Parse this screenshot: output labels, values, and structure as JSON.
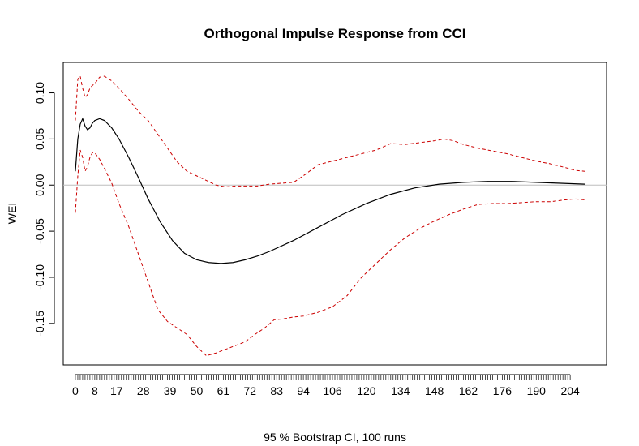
{
  "chart_data": {
    "type": "line",
    "title": "Orthogonal Impulse Response from CCI",
    "xlabel": "95 % Bootstrap CI,  100 runs",
    "ylabel": "WEI",
    "xlim": [
      -5,
      219
    ],
    "ylim": [
      -0.195,
      0.133
    ],
    "x_ticks": [
      0,
      8,
      17,
      28,
      39,
      50,
      61,
      72,
      83,
      94,
      106,
      120,
      134,
      148,
      162,
      176,
      190,
      204
    ],
    "y_ticks": [
      0.1,
      0.05,
      0.0,
      -0.05,
      -0.1,
      -0.15
    ],
    "y_tick_labels": [
      "0.10",
      "0.05",
      "0.00",
      "-0.05",
      "-0.10",
      "-0.15"
    ],
    "reference_line": {
      "y": 0,
      "color": "#bebebe"
    },
    "series": [
      {
        "role": "response",
        "color": "#000000",
        "dash": "solid",
        "x": [
          0,
          1,
          2,
          3,
          4,
          5,
          6,
          7,
          8,
          10,
          12,
          15,
          18,
          22,
          26,
          30,
          35,
          40,
          45,
          50,
          55,
          60,
          65,
          70,
          75,
          80,
          90,
          100,
          110,
          120,
          130,
          140,
          150,
          160,
          170,
          180,
          190,
          200,
          210
        ],
        "values": [
          0.015,
          0.05,
          0.066,
          0.072,
          0.064,
          0.06,
          0.062,
          0.067,
          0.07,
          0.072,
          0.07,
          0.062,
          0.05,
          0.03,
          0.008,
          -0.015,
          -0.04,
          -0.06,
          -0.074,
          -0.081,
          -0.084,
          -0.085,
          -0.084,
          -0.081,
          -0.077,
          -0.072,
          -0.06,
          -0.046,
          -0.032,
          -0.02,
          -0.01,
          -0.003,
          0.001,
          0.003,
          0.004,
          0.004,
          0.003,
          0.002,
          0.001
        ]
      },
      {
        "role": "upper-ci",
        "color": "#cc0000",
        "dash": "dashed",
        "x": [
          0,
          1,
          2,
          3,
          4,
          5,
          6,
          7,
          8,
          10,
          12,
          15,
          18,
          22,
          26,
          30,
          34,
          38,
          42,
          46,
          50,
          54,
          58,
          62,
          66,
          70,
          75,
          80,
          85,
          90,
          95,
          100,
          106,
          112,
          118,
          124,
          130,
          136,
          142,
          148,
          152,
          156,
          160,
          166,
          172,
          178,
          184,
          190,
          196,
          202,
          206,
          210
        ],
        "values": [
          0.07,
          0.115,
          0.118,
          0.105,
          0.095,
          0.098,
          0.105,
          0.108,
          0.11,
          0.117,
          0.118,
          0.113,
          0.105,
          0.093,
          0.08,
          0.07,
          0.055,
          0.04,
          0.025,
          0.015,
          0.01,
          0.005,
          0.0,
          -0.002,
          -0.001,
          -0.001,
          -0.001,
          0.001,
          0.002,
          0.003,
          0.012,
          0.022,
          0.026,
          0.03,
          0.034,
          0.038,
          0.045,
          0.044,
          0.046,
          0.048,
          0.05,
          0.048,
          0.044,
          0.04,
          0.037,
          0.034,
          0.03,
          0.026,
          0.023,
          0.019,
          0.016,
          0.015
        ]
      },
      {
        "role": "lower-ci",
        "color": "#cc0000",
        "dash": "dashed",
        "x": [
          0,
          1,
          2,
          3,
          4,
          5,
          6,
          7,
          8,
          10,
          12,
          15,
          18,
          22,
          26,
          30,
          34,
          38,
          42,
          46,
          50,
          54,
          58,
          62,
          66,
          70,
          74,
          78,
          82,
          86,
          90,
          94,
          100,
          106,
          112,
          118,
          124,
          130,
          136,
          142,
          148,
          154,
          160,
          166,
          172,
          178,
          184,
          190,
          196,
          202,
          206,
          210
        ],
        "values": [
          -0.03,
          0.01,
          0.038,
          0.03,
          0.015,
          0.02,
          0.03,
          0.035,
          0.035,
          0.028,
          0.018,
          0.002,
          -0.02,
          -0.045,
          -0.075,
          -0.105,
          -0.135,
          -0.148,
          -0.155,
          -0.162,
          -0.175,
          -0.185,
          -0.182,
          -0.178,
          -0.174,
          -0.17,
          -0.162,
          -0.155,
          -0.146,
          -0.145,
          -0.143,
          -0.142,
          -0.138,
          -0.132,
          -0.12,
          -0.1,
          -0.085,
          -0.07,
          -0.057,
          -0.047,
          -0.039,
          -0.032,
          -0.026,
          -0.021,
          -0.02,
          -0.02,
          -0.019,
          -0.018,
          -0.018,
          -0.016,
          -0.015,
          -0.016
        ]
      }
    ]
  }
}
